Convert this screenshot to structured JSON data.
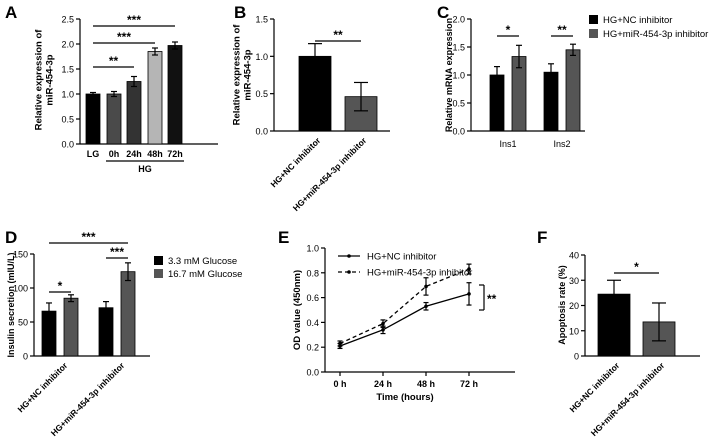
{
  "chart_data": [
    {
      "panel": "A",
      "type": "bar",
      "ylabel": "Relative expression of miR-454-3p",
      "ylim": [
        0,
        2.5
      ],
      "yticks": [
        "0.0",
        "0.5",
        "1.0",
        "1.5",
        "2.0",
        "2.5"
      ],
      "categories": [
        "LG",
        "0h",
        "24h",
        "48h",
        "72h"
      ],
      "group_label": "HG",
      "values": [
        1.0,
        1.0,
        1.25,
        1.85,
        1.97
      ],
      "errors": [
        0.03,
        0.05,
        0.1,
        0.07,
        0.07
      ],
      "colors": [
        "#000000",
        "#4a4a4a",
        "#333333",
        "#b5b5b5",
        "#111111"
      ],
      "significance": [
        "***",
        "***",
        "**"
      ]
    },
    {
      "panel": "B",
      "type": "bar",
      "ylabel": "Relative expression of miR-454-3p",
      "ylim": [
        0,
        1.5
      ],
      "yticks": [
        "0.0",
        "0.5",
        "1.0",
        "1.5"
      ],
      "categories": [
        "HG+NC inhibitor",
        "HG+miR-454-3p inhibitor"
      ],
      "values": [
        1.0,
        0.46
      ],
      "errors": [
        0.17,
        0.19
      ],
      "colors": [
        "#000000",
        "#555555"
      ],
      "significance": [
        "**"
      ]
    },
    {
      "panel": "C",
      "type": "bar",
      "ylabel": "Relative mRNA expression",
      "ylim": [
        0,
        2.0
      ],
      "yticks": [
        "0.0",
        "0.5",
        "1.0",
        "1.5",
        "2.0"
      ],
      "categories": [
        "Ins1",
        "Ins2"
      ],
      "series": [
        {
          "name": "HG+NC inhibitor",
          "values": [
            1.0,
            1.05
          ],
          "errors": [
            0.15,
            0.15
          ],
          "color": "#000000"
        },
        {
          "name": "HG+miR-454-3p inhibitor",
          "values": [
            1.33,
            1.45
          ],
          "errors": [
            0.2,
            0.1
          ],
          "color": "#555555"
        }
      ],
      "significance": [
        "*",
        "**"
      ]
    },
    {
      "panel": "D",
      "type": "bar",
      "ylabel": "Insulin secretion (mIU/L)",
      "ylim": [
        0,
        150
      ],
      "yticks": [
        "0",
        "50",
        "100",
        "150"
      ],
      "categories": [
        "HG+NC inhibitor",
        "HG+miR-454-3p inhibitor"
      ],
      "series": [
        {
          "name": "3.3 mM Glucose",
          "values": [
            66,
            71
          ],
          "errors": [
            12,
            9
          ],
          "color": "#000000"
        },
        {
          "name": "16.7 mM Glucose",
          "values": [
            85,
            124
          ],
          "errors": [
            5,
            13
          ],
          "color": "#555555"
        }
      ],
      "significance": [
        "*",
        "***",
        "***"
      ]
    },
    {
      "panel": "E",
      "type": "line",
      "xlabel": "Time (hours)",
      "ylabel": "OD value (450nm)",
      "ylim": [
        0,
        1.0
      ],
      "yticks": [
        "0.0",
        "0.2",
        "0.4",
        "0.6",
        "0.8",
        "1.0"
      ],
      "x": [
        "0 h",
        "24 h",
        "48 h",
        "72 h"
      ],
      "series": [
        {
          "name": "HG+NC inhibitor",
          "values": [
            0.21,
            0.34,
            0.53,
            0.63
          ],
          "errors": [
            0.02,
            0.03,
            0.03,
            0.09
          ],
          "style": "solid"
        },
        {
          "name": "HG+miR-454-3p inhibitor",
          "values": [
            0.23,
            0.39,
            0.69,
            0.83
          ],
          "errors": [
            0.02,
            0.03,
            0.07,
            0.04
          ],
          "style": "dashed"
        }
      ],
      "significance": [
        "**"
      ]
    },
    {
      "panel": "F",
      "type": "bar",
      "ylabel": "Apoptosis rate (%)",
      "ylim": [
        0,
        40
      ],
      "yticks": [
        "0",
        "10",
        "20",
        "30",
        "40"
      ],
      "categories": [
        "HG+NC inhibitor",
        "HG+miR-454-3p inhibitor"
      ],
      "values": [
        24.5,
        13.5
      ],
      "errors": [
        5.5,
        7.5
      ],
      "colors": [
        "#000000",
        "#555555"
      ],
      "significance": [
        "*"
      ]
    }
  ]
}
